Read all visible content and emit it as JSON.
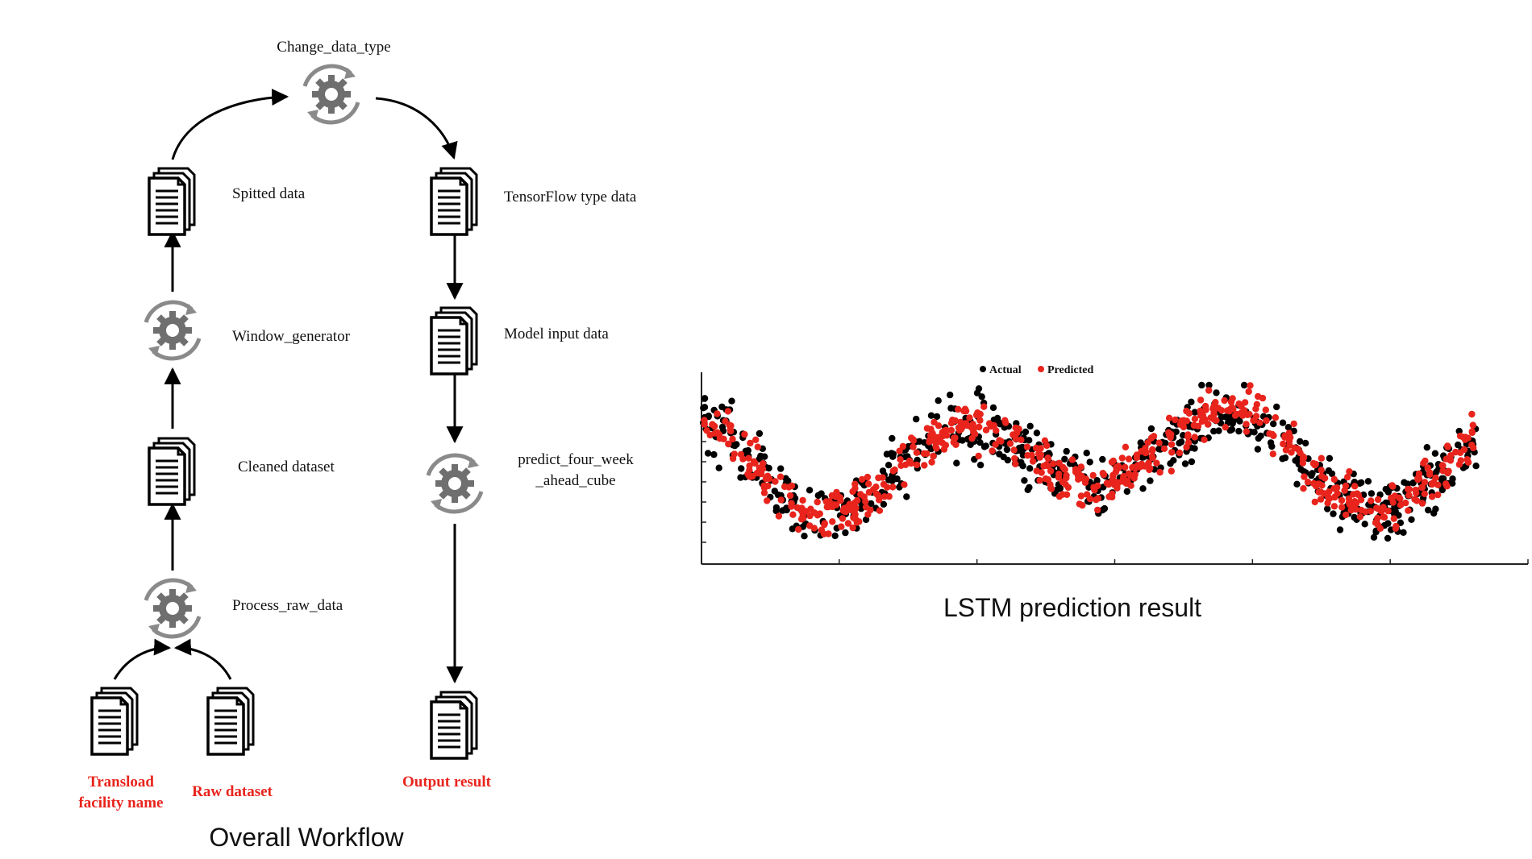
{
  "workflow": {
    "caption": "Overall Workflow",
    "nodes": [
      {
        "id": "transload",
        "kind": "document",
        "label_lines": [
          "Transload",
          "facility name"
        ],
        "highlight": true
      },
      {
        "id": "raw",
        "kind": "document",
        "label_lines": [
          "Raw dataset"
        ],
        "highlight": true
      },
      {
        "id": "process_raw",
        "kind": "process",
        "label_lines": [
          "Process_raw_data"
        ]
      },
      {
        "id": "cleaned",
        "kind": "document",
        "label_lines": [
          "Cleaned dataset"
        ]
      },
      {
        "id": "window_gen",
        "kind": "process",
        "label_lines": [
          "Window_generator"
        ]
      },
      {
        "id": "spitted",
        "kind": "document",
        "label_lines": [
          "Spitted data"
        ]
      },
      {
        "id": "change_type",
        "kind": "process",
        "label_lines": [
          "Change_data_type"
        ]
      },
      {
        "id": "tf_data",
        "kind": "document",
        "label_lines": [
          "TensorFlow type data"
        ]
      },
      {
        "id": "model_input",
        "kind": "document",
        "label_lines": [
          "Model input data"
        ]
      },
      {
        "id": "predict",
        "kind": "process",
        "label_lines": [
          "predict_four_week",
          "_ahead_cube"
        ]
      },
      {
        "id": "output",
        "kind": "document",
        "label_lines": [
          "Output result"
        ],
        "highlight": true
      }
    ],
    "colors": {
      "highlight": "#e8241c",
      "text": "#111111",
      "icon_gear": "#6f6f6f",
      "icon_doc": "#000000"
    }
  },
  "chart": {
    "caption": "LSTM prediction result",
    "chart_data": {
      "type": "scatter",
      "title": "",
      "xlabel": "",
      "ylabel": "",
      "legend": {
        "position": "top-center"
      },
      "grid": false,
      "x_ticks": 6,
      "y_ticks": 8,
      "series": [
        {
          "name": "Actual",
          "color": "#000000"
        },
        {
          "name": "Predicted",
          "color": "#e8241c"
        }
      ]
    }
  }
}
